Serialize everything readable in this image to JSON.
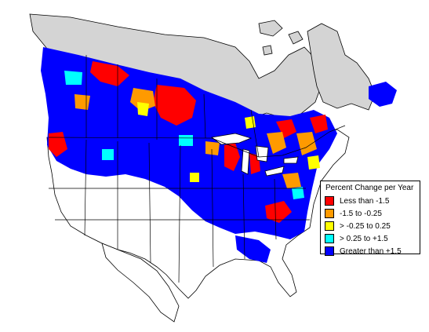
{
  "colors": {
    "background": "#ffffff",
    "no_data_land": "#d4d4d4",
    "outline": "#000000"
  },
  "legend": {
    "title": "Percent Change per Year",
    "items": [
      {
        "label": "Less than -1.5",
        "color": "#ff0000"
      },
      {
        "label": "-1.5 to -0.25",
        "color": "#ff9a00"
      },
      {
        "label": "> -0.25 to 0.25",
        "color": "#ffff00"
      },
      {
        "label": "> 0.25 to +1.5",
        "color": "#00ffff"
      },
      {
        "label": "Greater than +1.5",
        "color": "#0000ff"
      }
    ]
  }
}
